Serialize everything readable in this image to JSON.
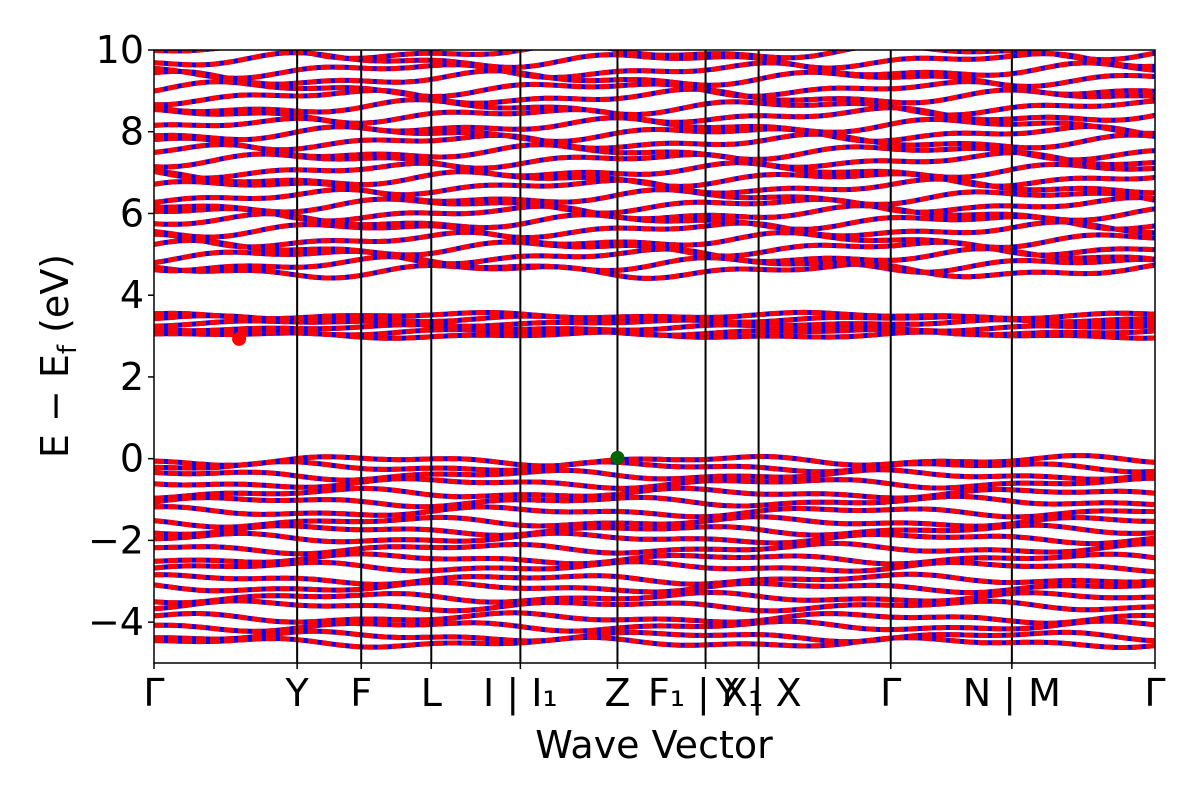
{
  "chart_data": {
    "type": "line",
    "xlabel": "Wave Vector",
    "ylabel": "E − E",
    "ylabel_sub": "f",
    "ylabel_unit": " (eV)",
    "ylim": [
      -5,
      10
    ],
    "yticks": [
      -4,
      -2,
      0,
      2,
      4,
      6,
      8,
      10
    ],
    "ytick_labels": [
      "−4",
      "−2",
      "0",
      "2",
      "4",
      "6",
      "8",
      "10"
    ],
    "kpath": [
      {
        "x": 0.0,
        "label": "Γ"
      },
      {
        "x": 0.143,
        "label": "Y"
      },
      {
        "x": 0.207,
        "label": "F"
      },
      {
        "x": 0.277,
        "label": "L"
      },
      {
        "x": 0.366,
        "label": "I | I₁"
      },
      {
        "x": 0.463,
        "label": "Z"
      },
      {
        "x": 0.551,
        "label": "F₁ | X₁"
      },
      {
        "x": 0.604,
        "label": "Y | X"
      },
      {
        "x": 0.736,
        "label": "Γ"
      },
      {
        "x": 0.857,
        "label": "N | M"
      },
      {
        "x": 1.0,
        "label": "Γ"
      }
    ],
    "xlim": [
      0,
      1
    ],
    "series_colors": {
      "spin_up": "#ff0000",
      "spin_down": "#0000ff"
    },
    "conduction_band_minimum": {
      "x": 0.085,
      "y": 2.93,
      "color": "#ff0000"
    },
    "valence_band_maximum": {
      "x": 0.463,
      "y": 0.02,
      "color": "#006400"
    },
    "band_groups": {
      "conduction_low": [
        3.02,
        3.1,
        3.2,
        3.32,
        3.42,
        3.5
      ],
      "valence_top": [
        -0.05,
        -0.2,
        -0.4,
        -0.6,
        -0.85,
        -1.05,
        -1.3,
        -1.55
      ],
      "deep_valence": [
        -1.75,
        -1.95,
        -2.2,
        -2.45,
        -2.65,
        -2.95,
        -3.15,
        -3.4,
        -3.6,
        -3.9,
        -4.1,
        -4.35,
        -4.5
      ],
      "upper_conduction": [
        4.6,
        4.75,
        4.95,
        5.15,
        5.35,
        5.6,
        5.8,
        6.0,
        6.2,
        6.4,
        6.65,
        6.85,
        7.05,
        7.3,
        7.5,
        7.75,
        7.95,
        8.15,
        8.4,
        8.6,
        8.85,
        9.05,
        9.3,
        9.5,
        9.75,
        9.95
      ]
    }
  }
}
